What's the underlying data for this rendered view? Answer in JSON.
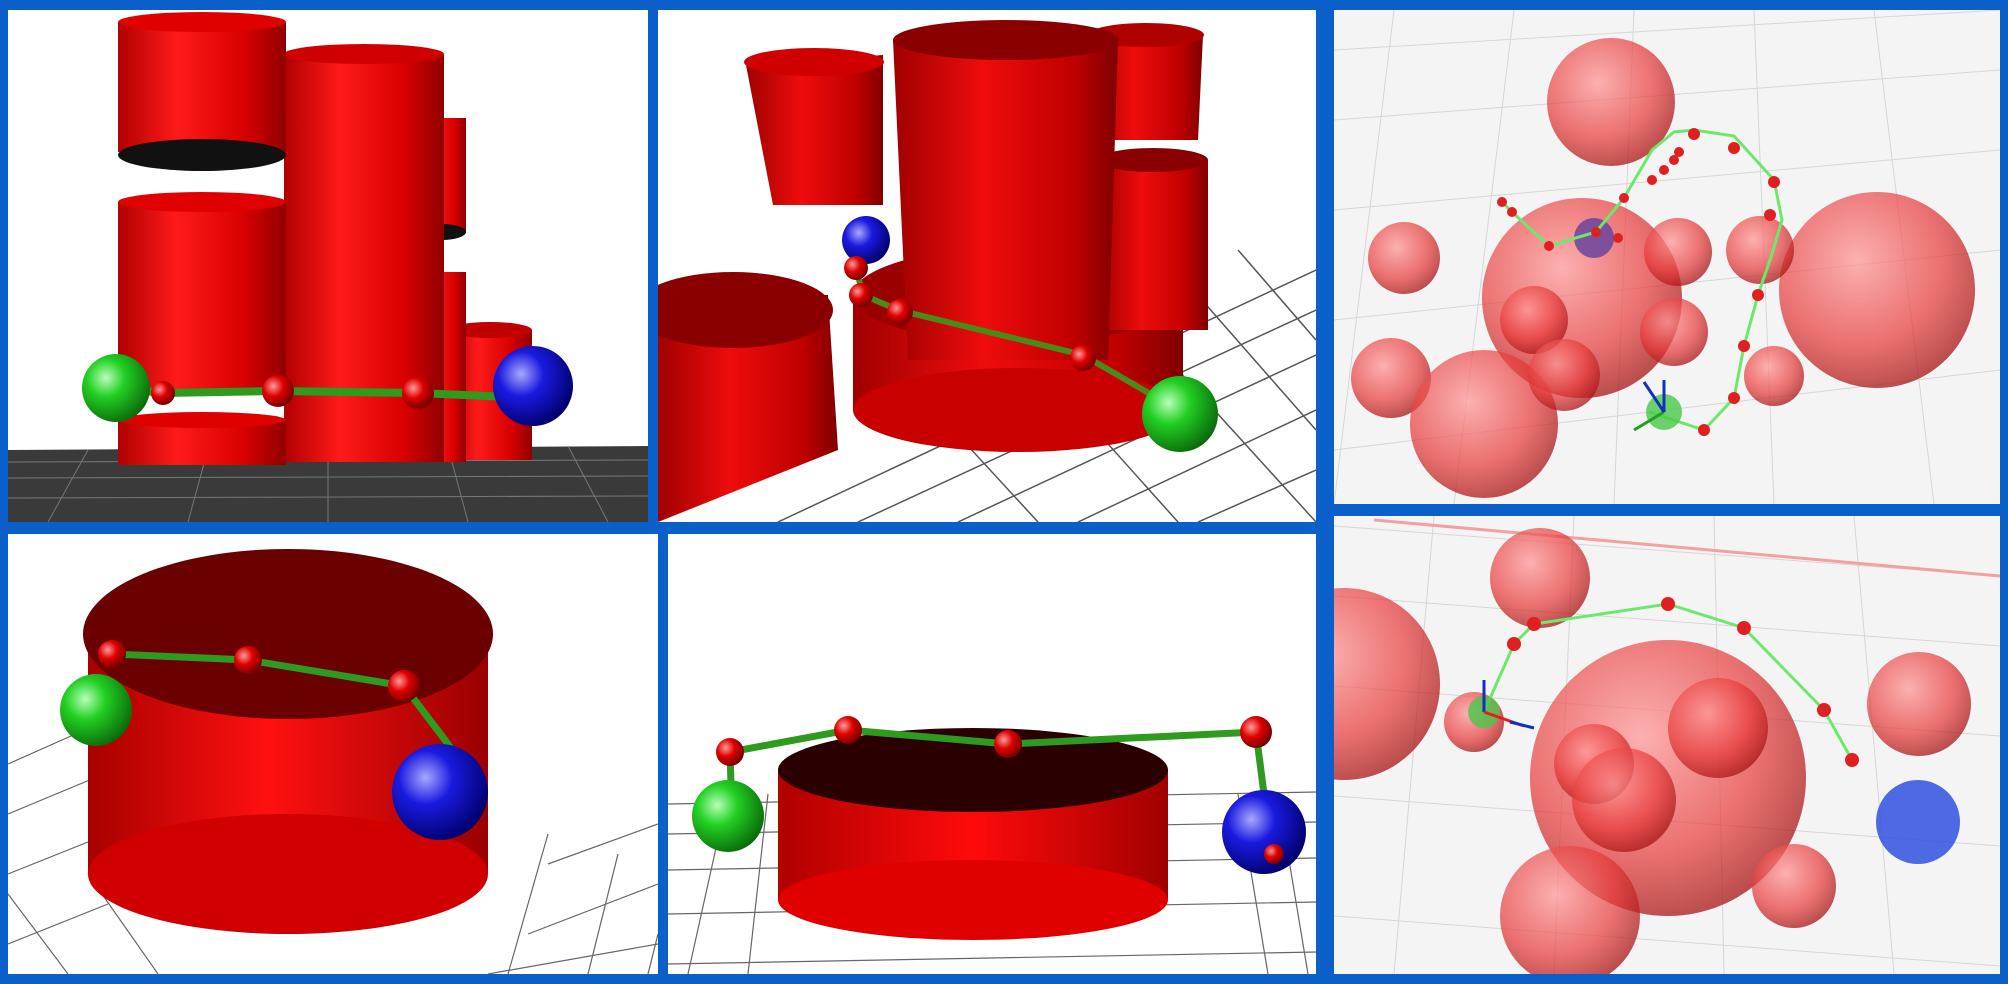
{
  "figure": {
    "panels": [
      {
        "name": "panel-a",
        "view": "side-view-cylinders"
      },
      {
        "name": "panel-b",
        "view": "perspective-view-cylinders"
      },
      {
        "name": "panel-c",
        "view": "transparent-spheres-view"
      },
      {
        "name": "panel-d",
        "view": "single-cylinder-low-view"
      },
      {
        "name": "panel-e",
        "view": "single-cylinder-front-view"
      },
      {
        "name": "panel-f",
        "view": "transparent-spheres-top-view"
      }
    ],
    "colors": {
      "border": "#0a5fc8",
      "obstacle": "#e00000",
      "path": "#2e9a1e",
      "start": "#22c422",
      "goal": "#1010d0",
      "waypoint": "#d80000"
    }
  }
}
